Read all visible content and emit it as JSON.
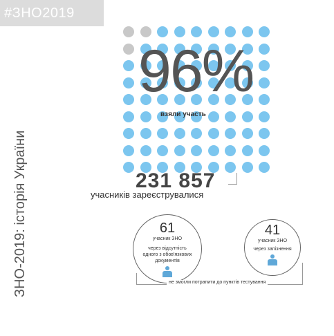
{
  "header": {
    "hashtag": "#ЗНО2019"
  },
  "side_title": "ЗНО-2019: історія України",
  "dot_grid": {
    "rows": 9,
    "cols": 9,
    "total": 81,
    "grey_count": 3,
    "grey_color": "#c8c8c8",
    "blue_color": "#7cc6ef"
  },
  "stats": {
    "participation_percent": "96%",
    "participation_label": "взяли участь",
    "registered_count": "231 857",
    "registered_label": "учасників зареєструвалися"
  },
  "absent": [
    {
      "count": "61",
      "unit": "учасник ЗНО",
      "reason": "через відсутність одного з обов'язкових документів",
      "icon": "person-icon"
    },
    {
      "count": "41",
      "unit": "учасник ЗНО",
      "reason": "через запізнення",
      "icon": "person-icon"
    }
  ],
  "footer_label": "не змогли потрапити до пунктів тестування",
  "colors": {
    "accent_blue": "#7cc6ef",
    "icon_blue": "#5fa8d8",
    "grey": "#c8c8c8"
  }
}
